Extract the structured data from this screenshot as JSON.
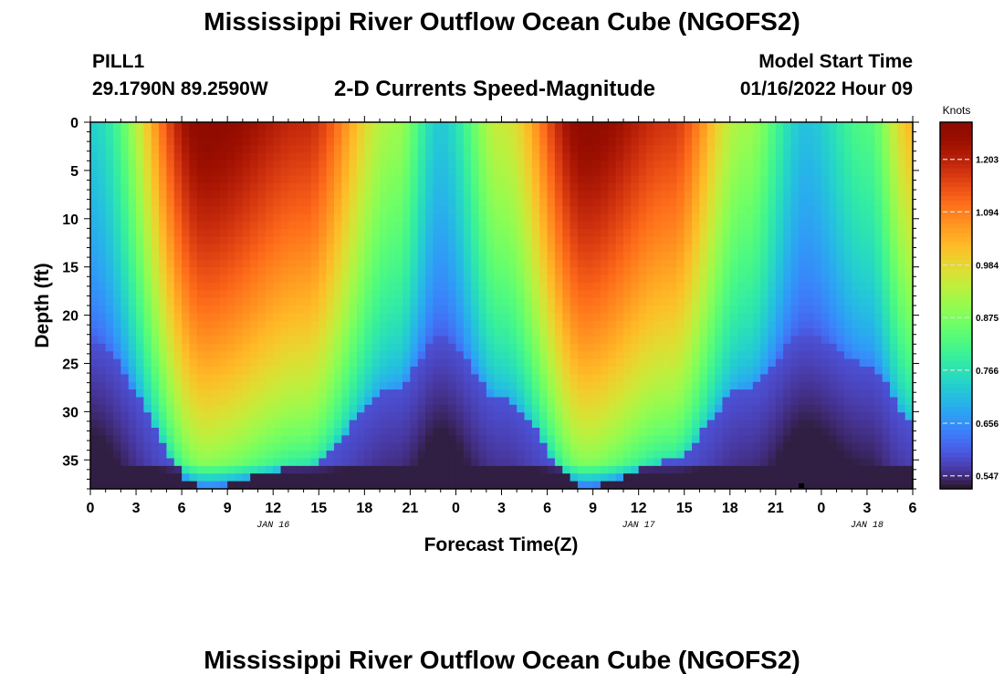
{
  "title": "Mississippi River Outflow Ocean Cube (NGOFS2)",
  "station": {
    "id": "PILL1",
    "coordinates": "29.1790N  89.2590W"
  },
  "model_start": {
    "label": "Model Start Time",
    "value": "01/16/2022 Hour 09"
  },
  "repeated_title": "Mississippi River Outflow Ocean Cube (NGOFS2)",
  "chart_data": {
    "type": "heatmap",
    "title": "2-D Currents Speed-Magnitude",
    "xlabel": "Forecast Time(Z)",
    "ylabel": "Depth (ft)",
    "xlim": [
      0,
      54
    ],
    "ylim": [
      0,
      38
    ],
    "y_inverted": true,
    "x_tick_values": [
      0,
      3,
      6,
      9,
      12,
      15,
      18,
      21,
      24,
      27,
      30,
      33,
      36,
      39,
      42,
      45,
      48,
      51,
      54
    ],
    "x_tick_labels": [
      "0",
      "3",
      "6",
      "9",
      "12",
      "15",
      "18",
      "21",
      "0",
      "3",
      "6",
      "9",
      "12",
      "15",
      "18",
      "21",
      "0",
      "3",
      "6"
    ],
    "y_tick_values": [
      0,
      5,
      10,
      15,
      20,
      25,
      30,
      35
    ],
    "y_tick_labels": [
      "0",
      "5",
      "10",
      "15",
      "20",
      "25",
      "30",
      "35"
    ],
    "date_labels": [
      {
        "x": 12,
        "text": "JAN 16"
      },
      {
        "x": 36,
        "text": "JAN 17"
      },
      {
        "x": 51,
        "text": "JAN 18"
      }
    ],
    "colorbar": {
      "label": "Knots",
      "min": 0.52,
      "max": 1.28,
      "tick_values": [
        0.547,
        0.656,
        0.766,
        0.875,
        0.984,
        1.094,
        1.203
      ],
      "tick_labels": [
        "0.547",
        "0.656",
        "0.766",
        "0.875",
        "0.984",
        "1.094",
        "1.203"
      ],
      "colormap": "turbo"
    },
    "field": {
      "description": "Speed magnitude (knots) along depth; surface speed peaks near hours 7-8 and 32-33, minima near hours 23 and 47",
      "peaks_hours": [
        7.5,
        32.5
      ],
      "troughs_hours": [
        23,
        47
      ],
      "surface_max_knots": 1.27,
      "bottom_min_knots": 0.53
    }
  }
}
